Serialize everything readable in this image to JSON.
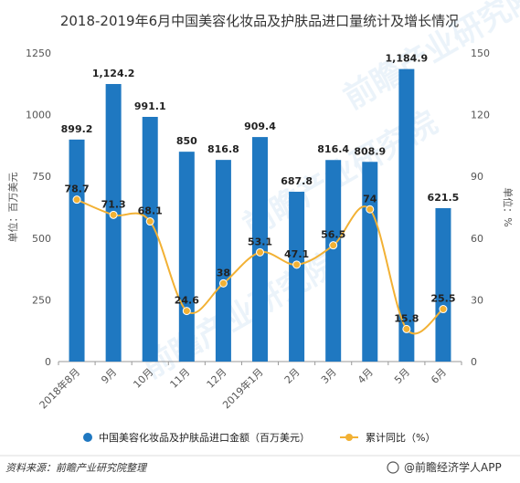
{
  "chart_data": {
    "type": "bar",
    "title": "2018-2019年6月中国美容化妆品及护肤品进口量统计及增长情况",
    "categories": [
      "2018年8月",
      "9月",
      "10月",
      "11月",
      "12月",
      "2019年1月",
      "2月",
      "3月",
      "4月",
      "5月",
      "6月"
    ],
    "series": [
      {
        "name": "中国美容化妆品及护肤品进口金额（百万美元）",
        "type": "bar",
        "axis": "left",
        "color": "#1F78C1",
        "values": [
          899.2,
          1124.2,
          991.1,
          850,
          816.8,
          909.4,
          687.8,
          816.4,
          808.9,
          1184.9,
          621.5
        ],
        "labels": [
          "899.2",
          "1,124.2",
          "991.1",
          "850",
          "816.8",
          "909.4",
          "687.8",
          "816.4",
          "808.9",
          "1,184.9",
          "621.5"
        ]
      },
      {
        "name": "累计同比（%）",
        "type": "line",
        "axis": "right",
        "color": "#F2B134",
        "values": [
          78.7,
          71.3,
          68.1,
          24.6,
          38,
          53.1,
          47.1,
          56.5,
          74,
          15.8,
          25.5
        ],
        "labels": [
          "78.7",
          "71.3",
          "68.1",
          "24.6",
          "38",
          "53.1",
          "47.1",
          "56.5",
          "74",
          "15.8",
          "25.5"
        ]
      }
    ],
    "left_axis": {
      "label": "单位：百万美元",
      "ylim": [
        0,
        1250
      ],
      "ticks": [
        "0",
        "250",
        "500",
        "750",
        "1000",
        "1250"
      ]
    },
    "right_axis": {
      "label": "单位：%",
      "ylim": [
        0,
        150
      ],
      "ticks": [
        "0",
        "30",
        "60",
        "90",
        "120",
        "150"
      ]
    },
    "grid": false,
    "legend_position": "bottom"
  },
  "footer": {
    "source": "资料来源：前瞻产业研究院整理",
    "brand": "@前瞻经济学人APP"
  },
  "watermark": "前瞻产业研究院"
}
